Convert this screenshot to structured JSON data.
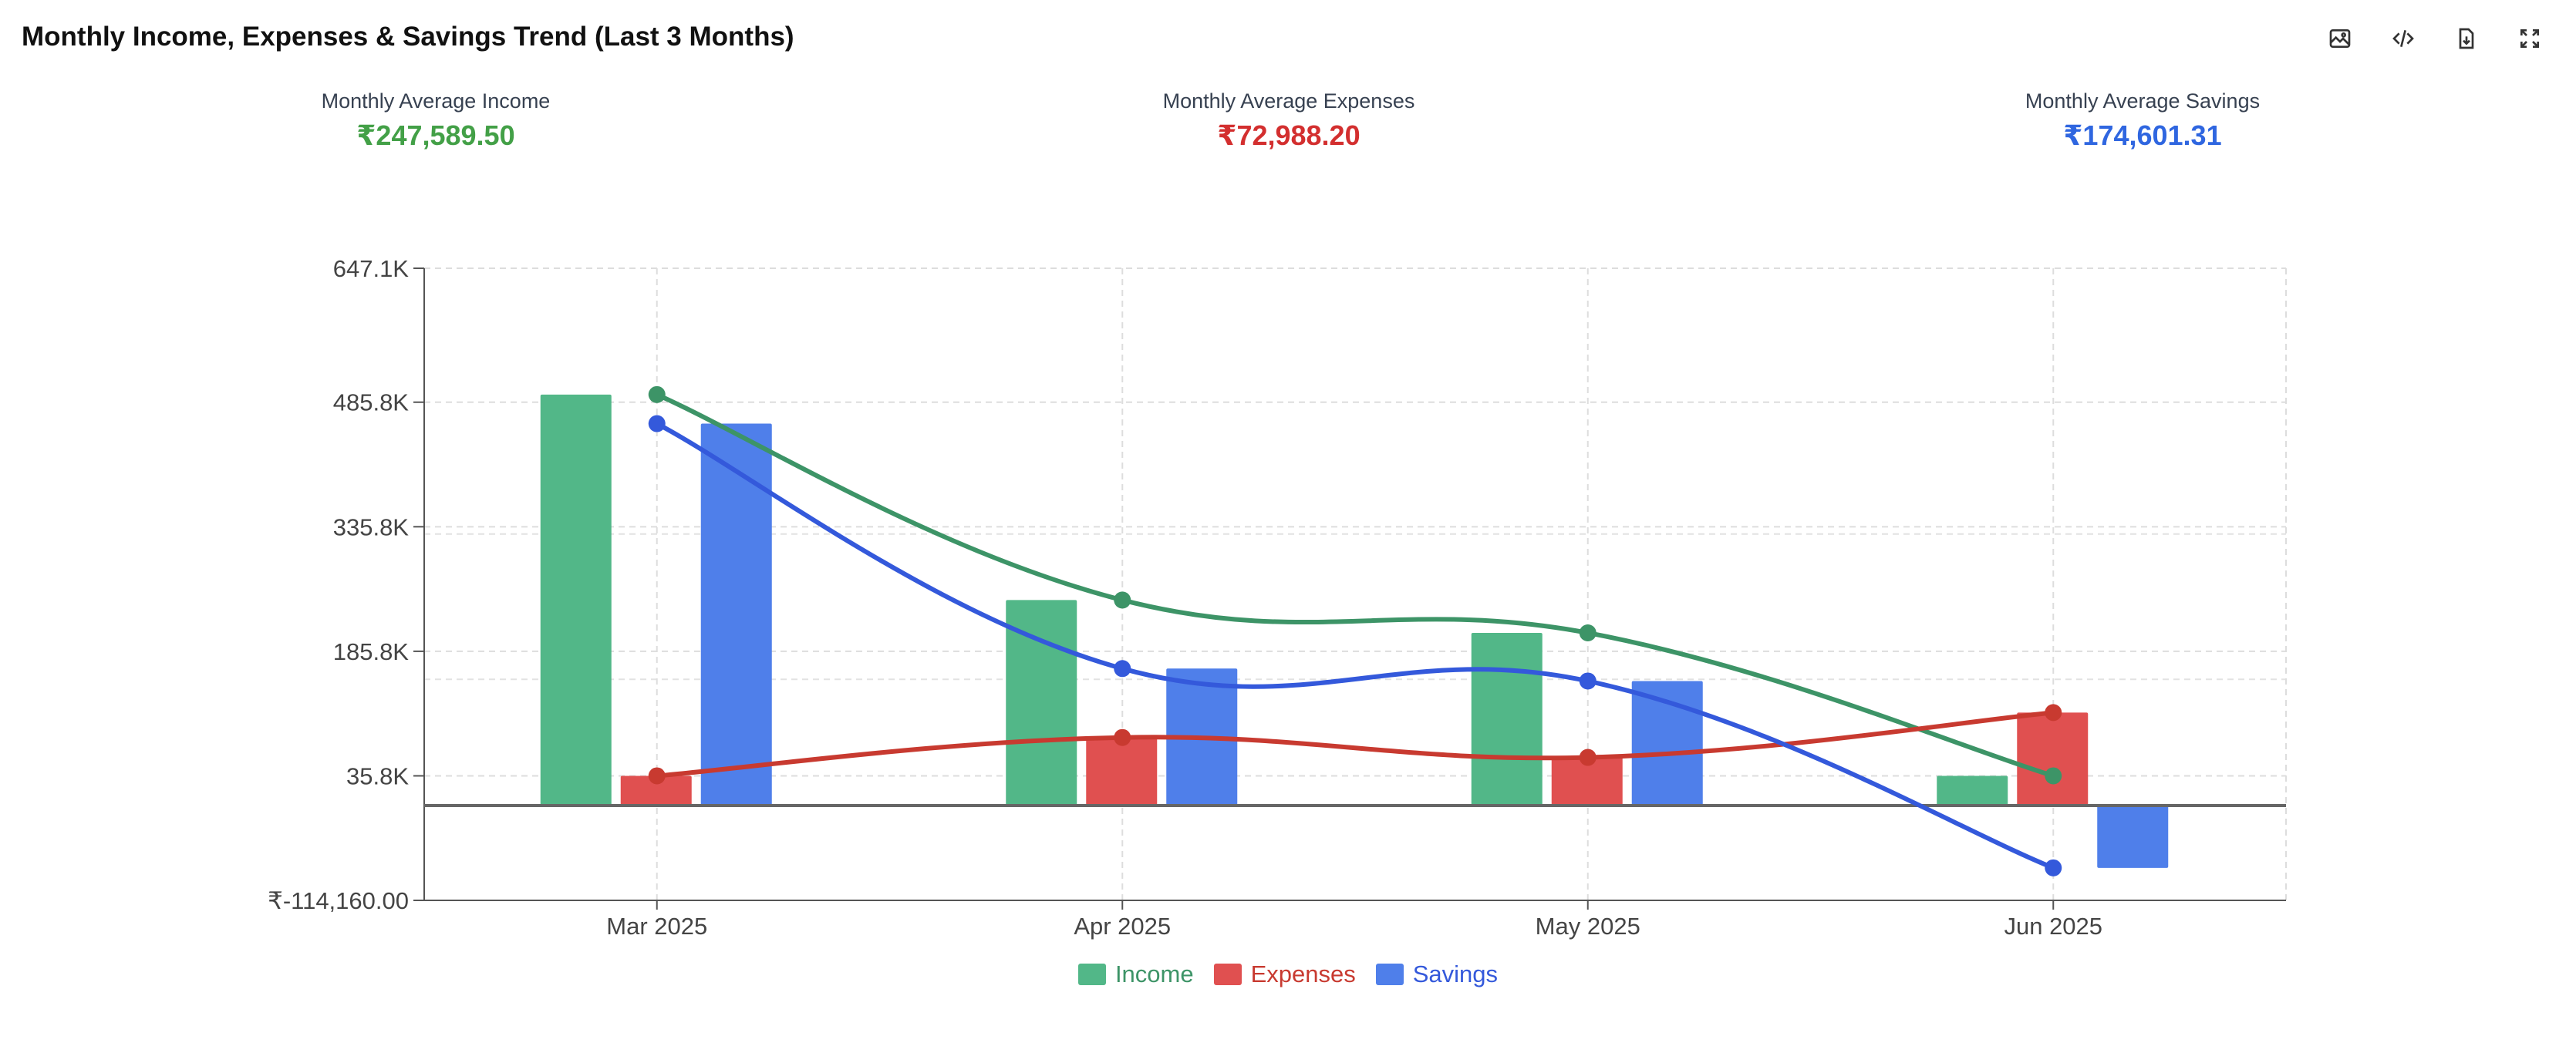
{
  "title": "Monthly Income, Expenses & Savings Trend (Last 3 Months)",
  "toolbar": {
    "icons": [
      "image-icon",
      "code-icon",
      "download-icon",
      "fullscreen-icon"
    ]
  },
  "stats": {
    "income": {
      "label": "Monthly Average Income",
      "value": "₹247,589.50",
      "color": "#43a047"
    },
    "expenses": {
      "label": "Monthly Average Expenses",
      "value": "₹72,988.20",
      "color": "#d32f2f"
    },
    "savings": {
      "label": "Monthly Average Savings",
      "value": "₹174,601.31",
      "color": "#2f66e0"
    }
  },
  "chart_data": {
    "type": "bar",
    "categories": [
      "Mar 2025",
      "Apr 2025",
      "May 2025",
      "Jun 2025"
    ],
    "series": [
      {
        "name": "Income",
        "values": [
          495000,
          247500,
          208000,
          35800
        ],
        "bar_color": "#52b788",
        "line_color": "#3d9467"
      },
      {
        "name": "Expenses",
        "values": [
          35800,
          82000,
          58000,
          112000
        ],
        "bar_color": "#e05050",
        "line_color": "#c83a30"
      },
      {
        "name": "Savings",
        "values": [
          460000,
          165000,
          150000,
          -75000
        ],
        "bar_color": "#4f7fea",
        "line_color": "#3459db"
      }
    ],
    "yticks": [
      "647.1K",
      "485.8K",
      "335.8K",
      "185.8K",
      "35.8K",
      "₹-114,160.00"
    ],
    "ytick_values": [
      647100,
      485800,
      335800,
      185800,
      35800,
      -114160
    ],
    "ylim": [
      -114160,
      647100
    ],
    "grid": true,
    "legend_position": "bottom-center",
    "overlay_lines": "smoothed lines with markers for each series"
  }
}
